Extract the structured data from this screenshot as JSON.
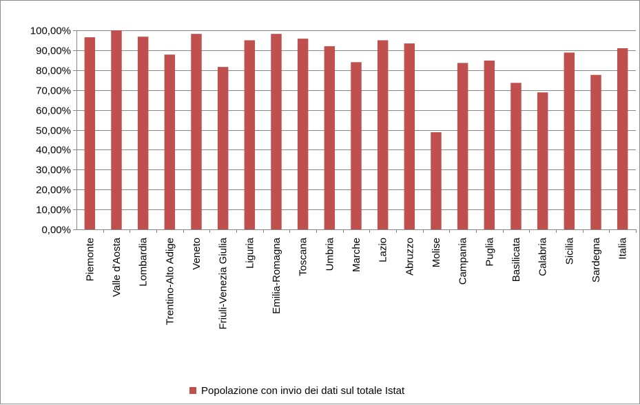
{
  "chart_data": {
    "type": "bar",
    "categories": [
      "Piemonte",
      "Valle d'Aosta",
      "Lombardia",
      "Trentino-Alto Adige",
      "Veneto",
      "Friuli-Venezia Giulia",
      "Liguria",
      "Emilia-Romagna",
      "Toscana",
      "Umbria",
      "Marche",
      "Lazio",
      "Abruzzo",
      "Molise",
      "Campania",
      "Puglia",
      "Basilicata",
      "Calabria",
      "Sicilia",
      "Sardegna",
      "Italia"
    ],
    "series": [
      {
        "name": "Popolazione con invio dei dati sul totale Istat",
        "values": [
          96.5,
          100.0,
          96.8,
          87.8,
          98.2,
          81.6,
          95.0,
          98.2,
          95.8,
          92.0,
          84.0,
          95.0,
          93.4,
          48.8,
          83.6,
          84.8,
          73.6,
          68.8,
          88.8,
          77.6,
          91.0
        ]
      }
    ],
    "ylim": [
      0,
      100
    ],
    "yticks": [
      0,
      10,
      20,
      30,
      40,
      50,
      60,
      70,
      80,
      90,
      100
    ],
    "ytick_labels": [
      "0,00%",
      "10,00%",
      "20,00%",
      "30,00%",
      "40,00%",
      "50,00%",
      "60,00%",
      "70,00%",
      "80,00%",
      "90,00%",
      "100,00%"
    ],
    "title": "",
    "xlabel": "",
    "ylabel": "",
    "grid": true,
    "legend_position": "bottom",
    "bar_color": "#c0504d",
    "grid_color": "#868686"
  }
}
